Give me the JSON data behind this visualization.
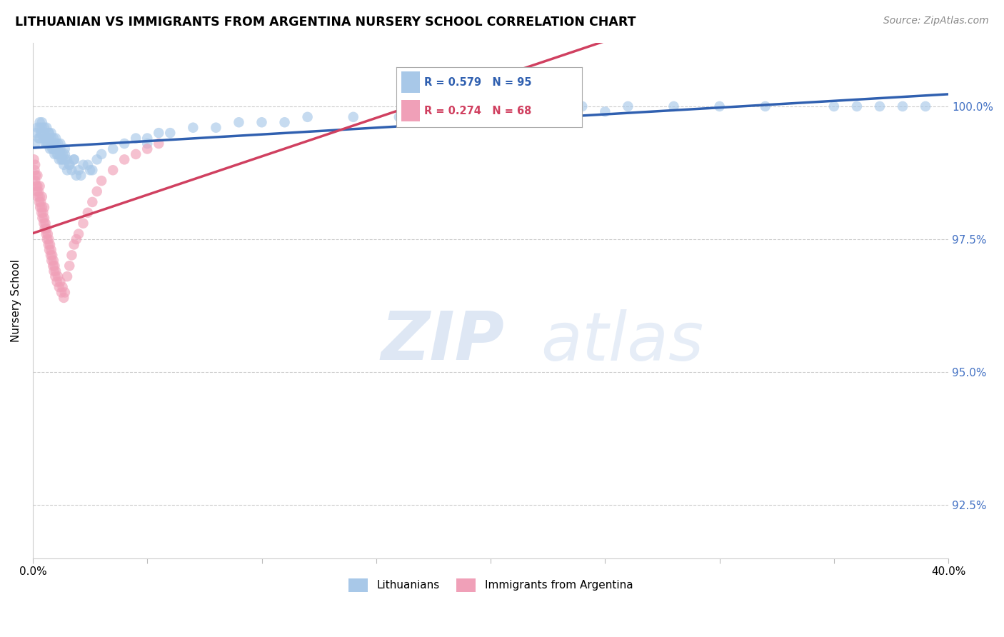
{
  "title": "LITHUANIAN VS IMMIGRANTS FROM ARGENTINA NURSERY SCHOOL CORRELATION CHART",
  "source": "Source: ZipAtlas.com",
  "ylabel": "Nursery School",
  "yticks": [
    92.5,
    95.0,
    97.5,
    100.0
  ],
  "ytick_labels": [
    "92.5%",
    "95.0%",
    "97.5%",
    "100.0%"
  ],
  "xlim": [
    0.0,
    40.0
  ],
  "ylim": [
    91.5,
    101.2
  ],
  "blue_R": 0.579,
  "blue_N": 95,
  "pink_R": 0.274,
  "pink_N": 68,
  "blue_color": "#A8C8E8",
  "pink_color": "#F0A0B8",
  "blue_line_color": "#3060B0",
  "pink_line_color": "#D04060",
  "legend_label_blue": "Lithuanians",
  "legend_label_pink": "Immigrants from Argentina",
  "blue_x": [
    0.1,
    0.15,
    0.2,
    0.25,
    0.3,
    0.3,
    0.35,
    0.4,
    0.4,
    0.45,
    0.5,
    0.5,
    0.55,
    0.6,
    0.6,
    0.65,
    0.7,
    0.7,
    0.75,
    0.8,
    0.8,
    0.85,
    0.9,
    0.9,
    0.95,
    1.0,
    1.0,
    1.05,
    1.1,
    1.1,
    1.15,
    1.2,
    1.2,
    1.25,
    1.3,
    1.35,
    1.4,
    1.4,
    1.5,
    1.5,
    1.6,
    1.7,
    1.8,
    1.9,
    2.0,
    2.1,
    2.2,
    2.4,
    2.6,
    2.8,
    3.0,
    3.5,
    4.0,
    4.5,
    5.0,
    5.5,
    6.0,
    7.0,
    8.0,
    9.0,
    10.0,
    11.0,
    12.0,
    14.0,
    16.0,
    18.0,
    20.0,
    22.0,
    24.0,
    25.0,
    26.0,
    28.0,
    30.0,
    32.0,
    35.0,
    36.0,
    37.0,
    38.0,
    39.0,
    0.3,
    0.4,
    0.5,
    0.6,
    0.7,
    0.8,
    0.9,
    1.0,
    1.1,
    1.2,
    1.3,
    1.4,
    1.6,
    1.8,
    2.5,
    5.0
  ],
  "blue_y": [
    99.3,
    99.5,
    99.6,
    99.4,
    99.6,
    99.7,
    99.5,
    99.5,
    99.7,
    99.4,
    99.4,
    99.6,
    99.3,
    99.4,
    99.6,
    99.3,
    99.5,
    99.4,
    99.2,
    99.3,
    99.5,
    99.2,
    99.4,
    99.3,
    99.1,
    99.2,
    99.4,
    99.1,
    99.3,
    99.2,
    99.0,
    99.1,
    99.3,
    99.0,
    99.1,
    98.9,
    99.0,
    99.2,
    99.0,
    98.8,
    98.9,
    98.8,
    99.0,
    98.7,
    98.8,
    98.7,
    98.9,
    98.9,
    98.8,
    99.0,
    99.1,
    99.2,
    99.3,
    99.4,
    99.4,
    99.5,
    99.5,
    99.6,
    99.6,
    99.7,
    99.7,
    99.7,
    99.8,
    99.8,
    99.8,
    99.9,
    99.9,
    99.9,
    100.0,
    99.9,
    100.0,
    100.0,
    100.0,
    100.0,
    100.0,
    100.0,
    100.0,
    100.0,
    100.0,
    99.4,
    99.6,
    99.5,
    99.3,
    99.5,
    99.4,
    99.2,
    99.3,
    99.1,
    99.2,
    99.0,
    99.1,
    98.9,
    99.0,
    98.8,
    99.3
  ],
  "pink_x": [
    0.05,
    0.08,
    0.1,
    0.12,
    0.15,
    0.18,
    0.2,
    0.22,
    0.25,
    0.28,
    0.3,
    0.32,
    0.35,
    0.38,
    0.4,
    0.42,
    0.45,
    0.48,
    0.5,
    0.52,
    0.55,
    0.58,
    0.6,
    0.62,
    0.65,
    0.68,
    0.7,
    0.72,
    0.75,
    0.78,
    0.8,
    0.82,
    0.85,
    0.88,
    0.9,
    0.92,
    0.95,
    0.98,
    1.0,
    1.05,
    1.1,
    1.15,
    1.2,
    1.25,
    1.3,
    1.35,
    1.4,
    1.5,
    1.6,
    1.7,
    1.8,
    1.9,
    2.0,
    2.2,
    2.4,
    2.6,
    2.8,
    3.0,
    3.5,
    4.0,
    4.5,
    5.0,
    5.5,
    0.1,
    0.2,
    0.3,
    0.4,
    0.5
  ],
  "pink_y": [
    99.0,
    98.8,
    98.6,
    98.7,
    98.5,
    98.4,
    98.5,
    98.3,
    98.4,
    98.2,
    98.3,
    98.1,
    98.2,
    98.0,
    98.1,
    97.9,
    98.0,
    97.8,
    97.9,
    97.7,
    97.8,
    97.6,
    97.7,
    97.5,
    97.6,
    97.4,
    97.5,
    97.3,
    97.4,
    97.2,
    97.3,
    97.1,
    97.2,
    97.0,
    97.1,
    96.9,
    97.0,
    96.8,
    96.9,
    96.7,
    96.8,
    96.6,
    96.7,
    96.5,
    96.6,
    96.4,
    96.5,
    96.8,
    97.0,
    97.2,
    97.4,
    97.5,
    97.6,
    97.8,
    98.0,
    98.2,
    98.4,
    98.6,
    98.8,
    99.0,
    99.1,
    99.2,
    99.3,
    98.9,
    98.7,
    98.5,
    98.3,
    98.1
  ]
}
